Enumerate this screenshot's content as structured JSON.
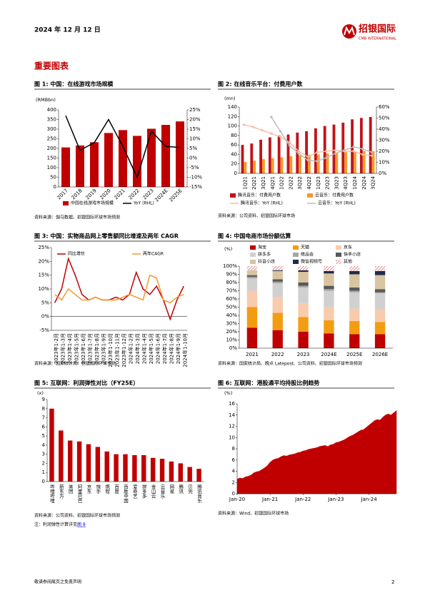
{
  "header": {
    "date": "2024 年 12 月 12 日",
    "logo": "招银国际",
    "logo_en": "CMB INTERNATIONAL"
  },
  "section_title": "重要图表",
  "chart_data": [
    {
      "type": "combo",
      "title": "图 1: 中国：在线游戏市场规模",
      "source": "资料来源：伽马数据、招银国际环球市场预测",
      "y_label": "(RMBbn)",
      "categories": [
        "2017",
        "2018",
        "2019",
        "2020",
        "2021",
        "2022",
        "2023",
        "2024E",
        "2025E"
      ],
      "series": [
        {
          "name": "中国在线游戏市场规模",
          "type": "bar",
          "color": "#C00000",
          "values": [
            205,
            215,
            232,
            280,
            295,
            265,
            302,
            322,
            340
          ]
        },
        {
          "name": "YoY (RHL)",
          "type": "line",
          "axis": "y2",
          "color": "#000000",
          "values": [
            22,
            4,
            8,
            20,
            6,
            -10,
            14,
            6,
            5.5
          ]
        }
      ],
      "ylim": [
        0,
        400
      ],
      "yticks": [
        0,
        50,
        100,
        150,
        200,
        250,
        300,
        350,
        400
      ],
      "y2lim": [
        -15,
        25
      ],
      "y2ticks": [
        {
          "value": -15,
          "label": "-15%"
        },
        {
          "value": -10,
          "label": "-10%"
        },
        {
          "value": -5,
          "label": "-5%"
        },
        {
          "value": 0,
          "label": "0%"
        },
        {
          "value": 5,
          "label": "5%"
        },
        {
          "value": 10,
          "label": "10%"
        },
        {
          "value": 15,
          "label": "15%"
        },
        {
          "value": 20,
          "label": "20%"
        },
        {
          "value": 25,
          "label": "25%"
        }
      ]
    },
    {
      "type": "combo",
      "title": "图 2: 在线音乐平台：付费用户数",
      "source": "资料来源：公司资料、招银国际环球市场",
      "y_label": "(mn)",
      "categories": [
        "1Q21",
        "2Q21",
        "3Q21",
        "4Q21",
        "1Q22",
        "2Q22",
        "3Q22",
        "4Q22",
        "1Q23",
        "2Q23",
        "3Q23",
        "4Q23",
        "1Q24",
        "2Q24",
        "3Q24"
      ],
      "series": [
        {
          "name": "腾讯音乐：付费用户数",
          "type": "bar",
          "color": "#C0141B",
          "values": [
            60,
            63,
            71,
            76,
            80,
            82,
            86,
            89,
            95,
            100,
            103,
            107,
            114,
            117,
            119
          ]
        },
        {
          "name": "云音乐：付费用户数",
          "type": "bar",
          "color": "#F39A2C",
          "values": [
            24,
            27,
            30,
            32,
            34,
            36,
            38,
            39,
            40,
            42,
            44,
            45,
            46,
            47,
            47
          ]
        },
        {
          "name": "腾讯音乐：YoY (RHL)",
          "type": "line",
          "axis": "y2",
          "color": "#F4BFA0",
          "markers": true,
          "values": [
            44,
            42,
            39,
            36,
            33,
            28,
            20,
            15,
            19,
            20,
            21,
            20,
            20,
            17,
            16
          ]
        },
        {
          "name": "云音乐：YoY (RHL)",
          "type": "line",
          "axis": "y2",
          "color": "#BDBDBD",
          "markers": true,
          "values": [
            null,
            null,
            null,
            51,
            38,
            25,
            18,
            12,
            11,
            14,
            18,
            21,
            24,
            22,
            19
          ]
        }
      ],
      "ylim": [
        0,
        140
      ],
      "yticks": [
        0,
        20,
        40,
        60,
        80,
        100,
        120,
        140
      ],
      "y2lim": [
        0,
        60
      ],
      "y2ticks": [
        {
          "value": 0,
          "label": "0%"
        },
        {
          "value": 10,
          "label": "10%"
        },
        {
          "value": 20,
          "label": "20%"
        },
        {
          "value": 30,
          "label": "30%"
        },
        {
          "value": 40,
          "label": "40%"
        },
        {
          "value": 50,
          "label": "50%"
        },
        {
          "value": 60,
          "label": "60%"
        }
      ]
    },
    {
      "type": "line",
      "title": "图 3: 中国：实物商品网上零售额同比增速及两年 CAGR",
      "source": "资料来源：国家统计局、招银国际环球市场",
      "categories": [
        "2023年1-2月",
        "2023年1-3月",
        "2023年1-4月",
        "2023年1-5月",
        "2023年1-6月",
        "2023年1-7月",
        "2023年1-8月",
        "2023年1-9月",
        "2023年1-10月",
        "2023年1-11月",
        "2023年1-12月",
        "2024年1-2月",
        "2024年1-3月",
        "2024年1-4月",
        "2024年1-5月",
        "2024年1-6月",
        "2024年1-7月",
        "2024年1-8月",
        "2024年1-9月",
        "2024年1-10月"
      ],
      "series": [
        {
          "name": "同比增长",
          "color": "#C00000",
          "values": [
            5,
            10,
            21,
            15,
            8,
            6,
            7,
            6,
            6,
            7,
            6,
            8,
            16,
            10,
            8,
            11,
            6,
            -1,
            6,
            11
          ]
        },
        {
          "name": "两年CAGR",
          "color": "#F39A2C",
          "values": [
            8,
            6,
            10,
            8,
            6,
            6,
            7,
            6,
            6,
            6,
            7,
            8,
            7,
            6,
            15,
            14,
            6,
            5,
            7,
            8
          ]
        }
      ],
      "ylim": [
        -5,
        25
      ],
      "yticks": [
        {
          "value": -5,
          "label": "-5%"
        },
        {
          "value": 0,
          "label": "0%"
        },
        {
          "value": 5,
          "label": "5%"
        },
        {
          "value": 10,
          "label": "10%"
        },
        {
          "value": 15,
          "label": "15%"
        },
        {
          "value": 20,
          "label": "20%"
        },
        {
          "value": 25,
          "label": "25%"
        }
      ]
    },
    {
      "type": "stacked_bar",
      "title": "图 4: 中国电商市场份额估算",
      "source": "资料来源：国家统计局、晚点 Latepost、公司资料、招银国际环球市场预测",
      "y_label": "(%)",
      "categories": [
        "2021",
        "2022",
        "2023",
        "2024E",
        "2025E",
        "2026E"
      ],
      "series": [
        {
          "name": "淘宝",
          "color": "#C00000",
          "values": [
            25,
            22,
            20,
            18,
            17,
            17
          ]
        },
        {
          "name": "天猫",
          "color": "#F39C12",
          "values": [
            25,
            21,
            18,
            16,
            16,
            15
          ]
        },
        {
          "name": "京东",
          "color": "#F8CBAD",
          "values": [
            20,
            19,
            17,
            16,
            15,
            15
          ]
        },
        {
          "name": "拼多多",
          "color": "#D0D0D0",
          "values": [
            15,
            17,
            19,
            20,
            20,
            20
          ]
        },
        {
          "name": "唯品会",
          "color": "#A6A6A6",
          "values": [
            2,
            2,
            2,
            2,
            2,
            1
          ]
        },
        {
          "name": "快手小店",
          "color": "#595959",
          "values": [
            2,
            3,
            4,
            4,
            4,
            4
          ]
        },
        {
          "name": "抖音小店",
          "color": "#D9C4A0",
          "values": [
            6,
            10,
            13,
            15,
            16,
            17
          ]
        },
        {
          "name": "微信视频号",
          "color": "#1F2D4D",
          "values": [
            0,
            1,
            2,
            3,
            4,
            5
          ]
        },
        {
          "name": "其他",
          "color": "#E06666",
          "pattern": "hatch",
          "values": [
            5,
            5,
            5,
            6,
            6,
            6
          ]
        }
      ],
      "ylim": [
        0,
        100
      ],
      "yticks": [
        {
          "value": 0,
          "label": "0%"
        },
        {
          "value": 10,
          "label": "10%"
        },
        {
          "value": 20,
          "label": "20%"
        },
        {
          "value": 30,
          "label": "30%"
        },
        {
          "value": 40,
          "label": "40%"
        },
        {
          "value": 50,
          "label": "50%"
        },
        {
          "value": 60,
          "label": "60%"
        },
        {
          "value": 70,
          "label": "70%"
        },
        {
          "value": 80,
          "label": "80%"
        },
        {
          "value": 90,
          "label": "90%"
        },
        {
          "value": 100,
          "label": "100%"
        }
      ]
    },
    {
      "type": "bar",
      "title": "图 5: 互联网：利润弹性对比（FY25E）",
      "source": "资料来源：公司资料、招银国际环球市场预测",
      "note": "注：利润弹性计算详见",
      "note_link": "图 8",
      "y_label": "(x)",
      "color": "#C00000",
      "categories": [
        "哔哩哔哩",
        "新东方",
        "美团",
        "阿里巴巴",
        "京东",
        "快手",
        "携程",
        "百度",
        "百胜中国",
        "爱奇艺",
        "拼多多",
        "金山云",
        "云音乐",
        "网易",
        "腾讯",
        "贝壳",
        "腾讯音乐"
      ],
      "values": [
        8.0,
        5.6,
        4.5,
        4.4,
        4.1,
        3.8,
        3.3,
        3.0,
        3.0,
        2.9,
        2.9,
        2.6,
        2.5,
        2.2,
        2.0,
        1.6,
        1.4
      ],
      "ylim": [
        0,
        9
      ],
      "yticks": [
        0,
        1,
        2,
        3,
        4,
        5,
        6,
        7,
        8,
        9
      ]
    },
    {
      "type": "area",
      "title": "图 6: 互联网：港股通平均持股比例趋势",
      "source": "资料来源：Wind、招银国际环球市场",
      "y_label": "(%)",
      "color": "#C00000",
      "categories": [
        "Jan-20",
        null,
        null,
        null,
        null,
        null,
        null,
        null,
        null,
        null,
        null,
        null,
        "Jan-21",
        null,
        null,
        null,
        null,
        null,
        null,
        null,
        null,
        null,
        null,
        null,
        "Jan-22",
        null,
        null,
        null,
        null,
        null,
        null,
        null,
        null,
        null,
        null,
        null,
        "Jan-23",
        null,
        null,
        null,
        null,
        null,
        null,
        null,
        null,
        null,
        null,
        null,
        "Jan-24",
        null,
        null,
        null,
        null,
        null,
        null,
        null,
        null,
        null,
        null
      ],
      "values": [
        2.6,
        2.8,
        2.7,
        3.0,
        3.1,
        3.3,
        3.7,
        3.9,
        4.0,
        4.3,
        4.6,
        5.0,
        5.6,
        6.0,
        6.2,
        6.3,
        6.6,
        6.8,
        6.7,
        6.9,
        7.0,
        7.1,
        7.3,
        7.4,
        7.6,
        7.7,
        7.9,
        8.0,
        8.1,
        8.2,
        8.4,
        8.5,
        8.6,
        8.4,
        8.7,
        8.8,
        9.1,
        9.2,
        9.4,
        9.6,
        9.9,
        10.2,
        10.4,
        10.7,
        11.0,
        11.3,
        11.4,
        11.8,
        12.2,
        12.6,
        13.0,
        13.2,
        13.1,
        13.6,
        14.0,
        14.2,
        14.0,
        14.4,
        14.8
      ],
      "ylim": [
        0,
        16
      ],
      "yticks": [
        0,
        2,
        4,
        6,
        8,
        10,
        12,
        14,
        16
      ]
    }
  ],
  "footer": {
    "disclaimer": "敬请参阅尾页之免责声明",
    "page": "2"
  }
}
